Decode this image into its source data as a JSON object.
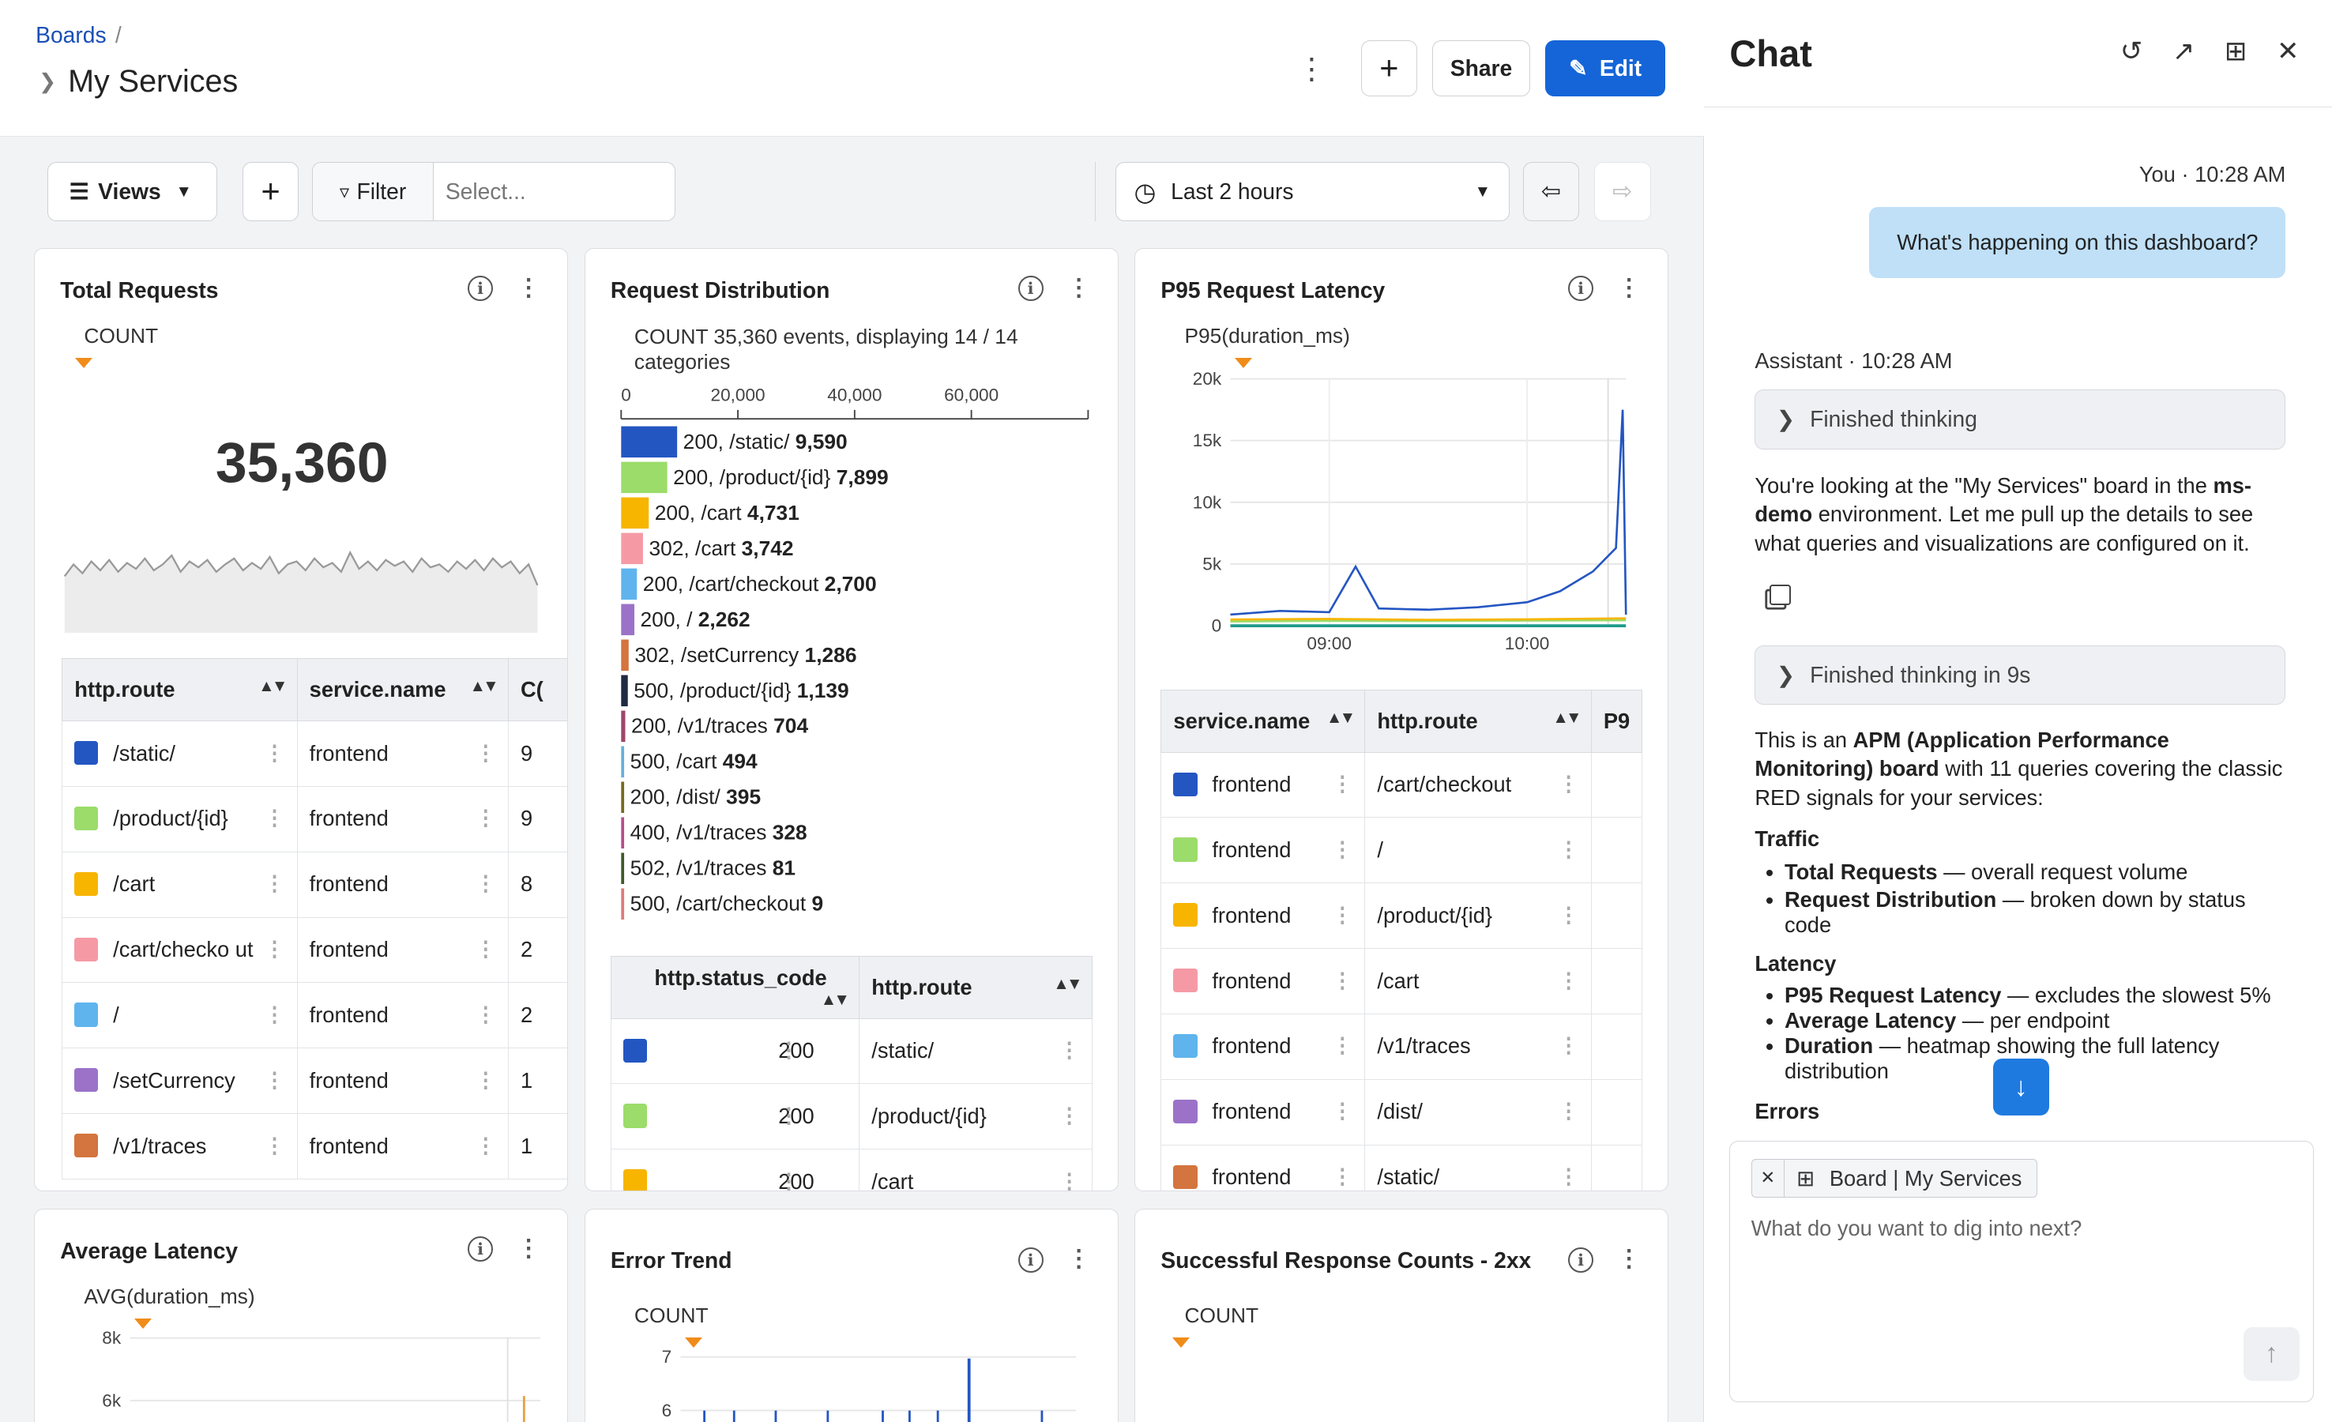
{
  "header": {
    "breadcrumb": "Boards",
    "breadcrumb_sep": "/",
    "title": "My Services",
    "share_label": "Share",
    "edit_label": "Edit"
  },
  "toolbar": {
    "views_label": "Views",
    "filter_label": "Filter",
    "filter_placeholder": "Select...",
    "time_range": "Last 2 hours"
  },
  "panels": {
    "total_requests": {
      "title": "Total Requests",
      "metric": "COUNT",
      "value": "35,360",
      "columns": [
        "http.route",
        "service.name",
        "C("
      ],
      "rows": [
        {
          "color": "#2456c2",
          "route": "/static/",
          "service": "frontend",
          "count": "9"
        },
        {
          "color": "#9bdc6a",
          "route": "/product/{id}",
          "service": "frontend",
          "count": "9"
        },
        {
          "color": "#f7b500",
          "route": "/cart",
          "service": "frontend",
          "count": "8"
        },
        {
          "color": "#f59aa5",
          "route": "/cart/checko ut",
          "service": "frontend",
          "count": "2"
        },
        {
          "color": "#5fb4ee",
          "route": "/",
          "service": "frontend",
          "count": "2"
        },
        {
          "color": "#9b72c8",
          "route": "/setCurrency",
          "service": "frontend",
          "count": "1"
        },
        {
          "color": "#d4743e",
          "route": "/v1/traces",
          "service": "frontend",
          "count": "1"
        }
      ]
    },
    "request_distribution": {
      "title": "Request Distribution",
      "summary": "COUNT 35,360 events, displaying 14 / 14 categories",
      "columns": [
        "http.status_code",
        "http.route"
      ],
      "rows": [
        {
          "color": "#2456c2",
          "code": "200",
          "route": "/static/"
        },
        {
          "color": "#9bdc6a",
          "code": "200",
          "route": "/product/{id}"
        },
        {
          "color": "#f7b500",
          "code": "200",
          "route": "/cart"
        }
      ]
    },
    "p95_latency": {
      "title": "P95 Request Latency",
      "metric": "P95(duration_ms)",
      "columns": [
        "service.name",
        "http.route",
        "P9"
      ],
      "rows": [
        {
          "color": "#2456c2",
          "service": "frontend",
          "route": "/cart/checkout"
        },
        {
          "color": "#9bdc6a",
          "service": "frontend",
          "route": "/"
        },
        {
          "color": "#f7b500",
          "service": "frontend",
          "route": "/product/{id}"
        },
        {
          "color": "#f59aa5",
          "service": "frontend",
          "route": "/cart"
        },
        {
          "color": "#5fb4ee",
          "service": "frontend",
          "route": "/v1/traces"
        },
        {
          "color": "#9b72c8",
          "service": "frontend",
          "route": "/dist/"
        },
        {
          "color": "#d4743e",
          "service": "frontend",
          "route": "/static/"
        }
      ]
    },
    "average_latency": {
      "title": "Average Latency",
      "metric": "AVG(duration_ms)"
    },
    "error_trend": {
      "title": "Error Trend",
      "metric": "COUNT"
    },
    "success_counts": {
      "title": "Successful Response Counts - 2xx",
      "metric": "COUNT"
    }
  },
  "chart_data": [
    {
      "type": "bar",
      "title": "Request Distribution",
      "orientation": "horizontal",
      "x_ticks": [
        "0",
        "20,000",
        "40,000",
        "60,000"
      ],
      "xlim": [
        0,
        80000
      ],
      "categories": [
        "200, /static/",
        "200, /product/{id}",
        "200, /cart",
        "302, /cart",
        "200, /cart/checkout",
        "200, /",
        "302, /setCurrency",
        "500, /product/{id}",
        "200, /v1/traces",
        "500, /cart",
        "200, /dist/",
        "400, /v1/traces",
        "502, /v1/traces",
        "500, /cart/checkout"
      ],
      "values": [
        9590,
        7899,
        4731,
        3742,
        2700,
        2262,
        1286,
        1139,
        704,
        494,
        395,
        328,
        81,
        9
      ],
      "value_labels": [
        "9,590",
        "7,899",
        "4,731",
        "3,742",
        "2,700",
        "2,262",
        "1,286",
        "1,139",
        "704",
        "494",
        "395",
        "328",
        "81",
        "9"
      ],
      "colors": [
        "#2456c2",
        "#9bdc6a",
        "#f7b500",
        "#f59aa5",
        "#5fb4ee",
        "#9b72c8",
        "#d4743e",
        "#1f2a44",
        "#a0456a",
        "#63b1d9",
        "#7a6a1f",
        "#b84d8a",
        "#3f5a2a",
        "#e07a7a"
      ]
    },
    {
      "type": "line",
      "title": "P95 Request Latency",
      "ylabel": "P95(duration_ms)",
      "y_ticks": [
        "0",
        "5k",
        "10k",
        "15k",
        "20k"
      ],
      "ylim": [
        0,
        20000
      ],
      "x_ticks": [
        "09:00",
        "10:00"
      ],
      "series": [
        {
          "color": "#2456c2",
          "x": [
            "08:30",
            "08:45",
            "09:00",
            "09:08",
            "09:15",
            "09:30",
            "09:45",
            "10:00",
            "10:10",
            "10:20",
            "10:27",
            "10:29",
            "10:30"
          ],
          "y": [
            900,
            1200,
            1100,
            4800,
            1400,
            1300,
            1500,
            1900,
            2800,
            4400,
            6300,
            17500,
            900
          ]
        },
        {
          "color": "#f7b500",
          "x": [
            "08:30",
            "09:00",
            "09:30",
            "10:00",
            "10:30"
          ],
          "y": [
            500,
            550,
            480,
            520,
            600
          ]
        },
        {
          "color": "#9bdc6a",
          "x": [
            "08:30",
            "09:00",
            "09:30",
            "10:00",
            "10:30"
          ],
          "y": [
            350,
            400,
            380,
            420,
            450
          ]
        }
      ]
    },
    {
      "type": "line",
      "title": "Average Latency",
      "ylabel": "AVG(duration_ms)",
      "y_ticks": [
        "8k",
        "6k"
      ]
    },
    {
      "type": "bar",
      "title": "Error Trend",
      "ylabel": "COUNT",
      "y_ticks": [
        "7",
        "6"
      ]
    }
  ],
  "chat": {
    "title": "Chat",
    "user_meta": "You · 10:28 AM",
    "user_message": "What's happening on this dashboard?",
    "assistant_meta": "Assistant · 10:28 AM",
    "thinking1": "Finished thinking",
    "thinking2": "Finished thinking in 9s",
    "p1_a": "You're looking at the \"My Services\" board in the ",
    "p1_b": "ms-demo",
    "p1_c": " environment. Let me pull up the details to see what queries and visualizations are configured on it.",
    "p2_a": "This is an ",
    "p2_b": "APM (Application Performance Monitoring) board",
    "p2_c": " with 11 queries covering the classic RED signals for your services:",
    "h_traffic": "Traffic",
    "traffic": [
      {
        "name": "Total Requests",
        "desc": " — overall request volume"
      },
      {
        "name": "Request Distribution",
        "desc": " — broken down by status code"
      }
    ],
    "h_latency": "Latency",
    "latency": [
      {
        "name": "P95 Request Latency",
        "desc": " — excludes the slowest 5%"
      },
      {
        "name": "Average Latency",
        "desc": " — per endpoint"
      },
      {
        "name": "Duration",
        "desc": " — heatmap showing the full latency distribution"
      }
    ],
    "h_errors": "Errors",
    "context_chip": "Board | My Services",
    "input_placeholder": "What do you want to dig into next?"
  }
}
